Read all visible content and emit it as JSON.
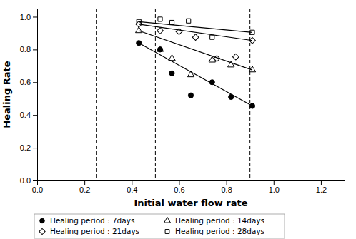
{
  "chart_data": {
    "type": "scatter",
    "xlabel": "Initial water flow rate",
    "ylabel": "Healing Rate",
    "xlim": [
      0.0,
      1.3
    ],
    "ylim": [
      0.0,
      1.05
    ],
    "xticks": [
      {
        "value": 0.0,
        "label": "0.0"
      },
      0.2,
      0.4,
      0.6,
      0.8,
      {
        "value": 1.0,
        "label": "1.0"
      },
      1.2
    ],
    "yticks": [
      {
        "value": 0.0,
        "label": "0.0"
      },
      0.2,
      0.4,
      0.6,
      0.8,
      {
        "value": 1.0,
        "label": "1.0"
      }
    ],
    "vlines": [
      0.25,
      0.5,
      0.9
    ],
    "legend": "lower left",
    "grid": false,
    "series": [
      {
        "name": "Healing period : 7days",
        "color": "black",
        "marker": "filled-circle",
        "x": [
          0.43,
          0.52,
          0.57,
          0.65,
          0.74,
          0.82,
          0.91
        ],
        "values": [
          0.84,
          0.8,
          0.655,
          0.52,
          0.6,
          0.51,
          0.455
        ],
        "trend": {
          "x": [
            0.43,
            0.91
          ],
          "values": [
            0.84,
            0.455
          ]
        }
      },
      {
        "name": "Healing period : 14days",
        "color": "black",
        "marker": "open-triangle",
        "x": [
          0.43,
          0.52,
          0.57,
          0.65,
          0.74,
          0.82,
          0.91
        ],
        "values": [
          0.915,
          0.8,
          0.745,
          0.645,
          0.735,
          0.705,
          0.675
        ],
        "trend": {
          "x": [
            0.43,
            0.91
          ],
          "values": [
            0.915,
            0.675
          ]
        }
      },
      {
        "name": "Healing period : 21days",
        "color": "black",
        "marker": "open-diamond",
        "x": [
          0.43,
          0.52,
          0.6,
          0.67,
          0.76,
          0.84,
          0.91
        ],
        "values": [
          0.955,
          0.915,
          0.91,
          0.875,
          0.745,
          0.755,
          0.855
        ],
        "trend": {
          "x": [
            0.43,
            0.91
          ],
          "values": [
            0.955,
            0.855
          ]
        }
      },
      {
        "name": "Healing period : 28days",
        "color": "black",
        "marker": "open-square",
        "x": [
          0.43,
          0.52,
          0.57,
          0.64,
          0.74,
          0.91
        ],
        "values": [
          0.97,
          0.985,
          0.965,
          0.975,
          0.875,
          0.905
        ],
        "trend": {
          "x": [
            0.43,
            0.91
          ],
          "values": [
            0.97,
            0.905
          ]
        }
      }
    ]
  }
}
